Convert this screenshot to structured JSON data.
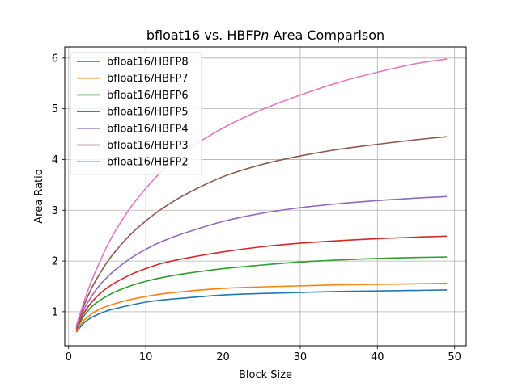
{
  "chart_data": {
    "type": "line",
    "title": "bfloat16 vs. HBFPn Area Comparison",
    "title_parts": [
      "bfloat16 vs. HBFP",
      "n",
      " Area Comparison"
    ],
    "xlabel": "Block Size",
    "ylabel": "Area Ratio",
    "xlim": [
      -0.5,
      51.5
    ],
    "ylim": [
      0.33,
      6.22
    ],
    "xticks": [
      0,
      10,
      20,
      30,
      40,
      50
    ],
    "yticks": [
      1,
      2,
      3,
      4,
      5,
      6
    ],
    "grid": true,
    "legend_position": "upper-left",
    "x": [
      1,
      2,
      3,
      4,
      5,
      6,
      8,
      10,
      12,
      15,
      20,
      25,
      30,
      35,
      40,
      45,
      49
    ],
    "series": [
      {
        "name": "bfloat16/HBFP8",
        "color": "#1f77b4",
        "values": [
          0.6,
          0.78,
          0.89,
          0.96,
          1.02,
          1.06,
          1.13,
          1.19,
          1.23,
          1.27,
          1.33,
          1.36,
          1.38,
          1.4,
          1.41,
          1.42,
          1.43
        ]
      },
      {
        "name": "bfloat16/HBFP7",
        "color": "#ff7f0e",
        "values": [
          0.62,
          0.83,
          0.96,
          1.05,
          1.11,
          1.16,
          1.24,
          1.3,
          1.35,
          1.4,
          1.46,
          1.49,
          1.51,
          1.53,
          1.54,
          1.55,
          1.56
        ]
      },
      {
        "name": "bfloat16/HBFP6",
        "color": "#2ca02c",
        "values": [
          0.65,
          0.92,
          1.1,
          1.22,
          1.31,
          1.39,
          1.51,
          1.6,
          1.67,
          1.75,
          1.85,
          1.92,
          1.98,
          2.02,
          2.05,
          2.07,
          2.08
        ]
      },
      {
        "name": "bfloat16/HBFP5",
        "color": "#d62728",
        "values": [
          0.67,
          0.98,
          1.19,
          1.35,
          1.47,
          1.57,
          1.73,
          1.85,
          1.95,
          2.05,
          2.18,
          2.28,
          2.35,
          2.4,
          2.44,
          2.47,
          2.49
        ]
      },
      {
        "name": "bfloat16/HBFP4",
        "color": "#9467bd",
        "values": [
          0.69,
          1.05,
          1.31,
          1.52,
          1.68,
          1.82,
          2.05,
          2.23,
          2.38,
          2.55,
          2.78,
          2.94,
          3.05,
          3.13,
          3.19,
          3.24,
          3.27
        ]
      },
      {
        "name": "bfloat16/HBFP3",
        "color": "#8c564b",
        "values": [
          0.71,
          1.13,
          1.47,
          1.74,
          1.98,
          2.18,
          2.52,
          2.79,
          3.02,
          3.3,
          3.66,
          3.9,
          4.07,
          4.2,
          4.3,
          4.39,
          4.45
        ]
      },
      {
        "name": "bfloat16/HBFP2",
        "color": "#e377c2",
        "values": [
          0.73,
          1.2,
          1.62,
          1.97,
          2.3,
          2.58,
          3.05,
          3.43,
          3.76,
          4.15,
          4.62,
          4.98,
          5.27,
          5.52,
          5.72,
          5.89,
          5.98
        ]
      }
    ]
  }
}
